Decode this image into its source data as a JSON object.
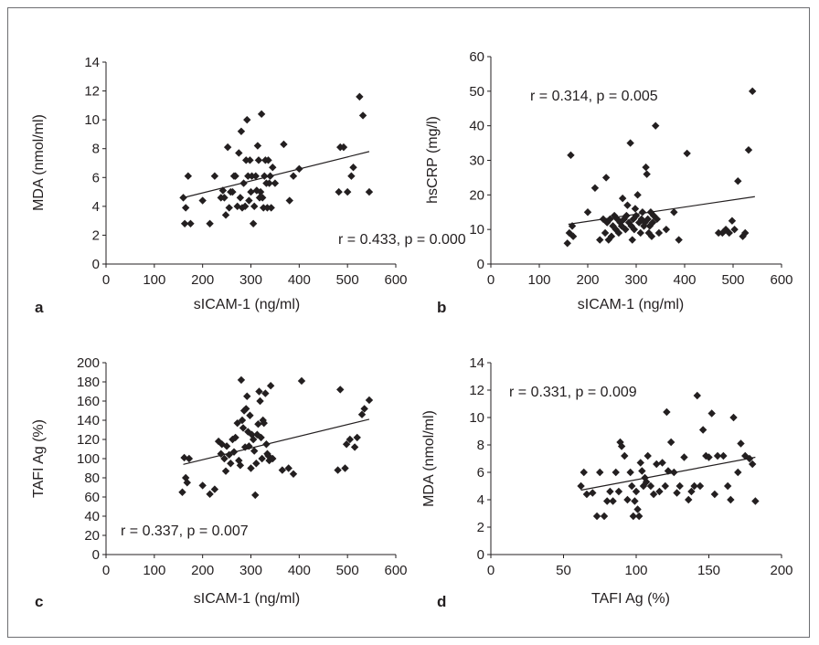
{
  "chart_data": [
    {
      "panel_letter": "a",
      "type": "scatter",
      "xlabel": "sICAM-1 (ng/ml)",
      "ylabel": "MDA (nmol/ml)",
      "xlim": [
        0,
        600
      ],
      "ylim": [
        0,
        14
      ],
      "xticks": [
        0,
        100,
        200,
        300,
        400,
        500,
        600
      ],
      "yticks": [
        0,
        2,
        4,
        6,
        8,
        10,
        12,
        14
      ],
      "annotation": "r = 0.433, p = 0.000",
      "trendline": [
        [
          160,
          4.6
        ],
        [
          545,
          7.8
        ]
      ],
      "points": [
        [
          160,
          4.6
        ],
        [
          163,
          2.8
        ],
        [
          165,
          3.9
        ],
        [
          170,
          6.1
        ],
        [
          175,
          2.8
        ],
        [
          200,
          4.4
        ],
        [
          215,
          2.8
        ],
        [
          225,
          6.1
        ],
        [
          238,
          4.6
        ],
        [
          242,
          5.1
        ],
        [
          245,
          4.6
        ],
        [
          248,
          3.4
        ],
        [
          252,
          8.1
        ],
        [
          255,
          3.9
        ],
        [
          258,
          5.0
        ],
        [
          262,
          5.0
        ],
        [
          265,
          6.1
        ],
        [
          268,
          6.1
        ],
        [
          272,
          4.0
        ],
        [
          275,
          7.7
        ],
        [
          278,
          4.6
        ],
        [
          280,
          9.2
        ],
        [
          282,
          3.9
        ],
        [
          285,
          5.6
        ],
        [
          288,
          4.0
        ],
        [
          290,
          7.2
        ],
        [
          292,
          10.0
        ],
        [
          294,
          6.1
        ],
        [
          296,
          4.4
        ],
        [
          298,
          7.2
        ],
        [
          300,
          5.0
        ],
        [
          302,
          6.1
        ],
        [
          305,
          2.8
        ],
        [
          307,
          4.0
        ],
        [
          310,
          6.1
        ],
        [
          312,
          5.1
        ],
        [
          314,
          8.2
        ],
        [
          316,
          7.2
        ],
        [
          318,
          4.6
        ],
        [
          320,
          5.0
        ],
        [
          322,
          10.4
        ],
        [
          324,
          4.6
        ],
        [
          326,
          3.9
        ],
        [
          328,
          6.1
        ],
        [
          330,
          7.2
        ],
        [
          332,
          5.6
        ],
        [
          334,
          3.9
        ],
        [
          336,
          7.2
        ],
        [
          338,
          5.6
        ],
        [
          340,
          6.1
        ],
        [
          342,
          3.9
        ],
        [
          345,
          6.7
        ],
        [
          350,
          5.6
        ],
        [
          368,
          8.3
        ],
        [
          380,
          4.4
        ],
        [
          388,
          6.1
        ],
        [
          400,
          6.6
        ],
        [
          482,
          5.0
        ],
        [
          485,
          8.1
        ],
        [
          492,
          8.1
        ],
        [
          500,
          5.0
        ],
        [
          508,
          6.1
        ],
        [
          512,
          6.7
        ],
        [
          525,
          11.6
        ],
        [
          532,
          10.3
        ],
        [
          545,
          5.0
        ]
      ]
    },
    {
      "panel_letter": "b",
      "type": "scatter",
      "xlabel": "sICAM-1 (ng/ml)",
      "ylabel": "hsCRP (mg/l)",
      "xlim": [
        0,
        600
      ],
      "ylim": [
        0,
        60
      ],
      "xticks": [
        0,
        100,
        200,
        300,
        400,
        500,
        600
      ],
      "yticks": [
        0,
        10,
        20,
        30,
        40,
        50,
        60
      ],
      "annotation": "r = 0.314, p = 0.005",
      "trendline": [
        [
          160,
          11.5
        ],
        [
          545,
          19.5
        ]
      ],
      "points": [
        [
          158,
          6
        ],
        [
          162,
          9
        ],
        [
          165,
          31.5
        ],
        [
          168,
          11
        ],
        [
          170,
          8
        ],
        [
          200,
          15
        ],
        [
          215,
          22
        ],
        [
          225,
          7
        ],
        [
          232,
          13
        ],
        [
          236,
          9
        ],
        [
          238,
          25
        ],
        [
          240,
          12
        ],
        [
          243,
          7
        ],
        [
          246,
          13
        ],
        [
          249,
          8
        ],
        [
          252,
          11
        ],
        [
          255,
          14
        ],
        [
          258,
          10
        ],
        [
          261,
          13
        ],
        [
          264,
          9
        ],
        [
          267,
          12
        ],
        [
          270,
          11
        ],
        [
          272,
          19
        ],
        [
          275,
          13
        ],
        [
          278,
          10
        ],
        [
          280,
          14
        ],
        [
          282,
          17
        ],
        [
          285,
          12
        ],
        [
          288,
          35
        ],
        [
          290,
          11
        ],
        [
          292,
          7
        ],
        [
          294,
          13
        ],
        [
          296,
          10
        ],
        [
          298,
          16
        ],
        [
          300,
          14
        ],
        [
          303,
          20
        ],
        [
          306,
          12
        ],
        [
          309,
          9
        ],
        [
          311,
          13
        ],
        [
          313,
          15
        ],
        [
          316,
          11
        ],
        [
          318,
          12
        ],
        [
          320,
          28
        ],
        [
          322,
          26
        ],
        [
          324,
          13
        ],
        [
          326,
          9
        ],
        [
          328,
          11
        ],
        [
          330,
          15
        ],
        [
          332,
          8
        ],
        [
          334,
          12
        ],
        [
          336,
          14
        ],
        [
          340,
          40
        ],
        [
          343,
          13
        ],
        [
          347,
          9
        ],
        [
          362,
          10
        ],
        [
          378,
          15
        ],
        [
          388,
          7
        ],
        [
          405,
          32
        ],
        [
          470,
          9
        ],
        [
          478,
          9
        ],
        [
          485,
          10
        ],
        [
          492,
          9
        ],
        [
          498,
          12.5
        ],
        [
          503,
          10
        ],
        [
          510,
          24
        ],
        [
          520,
          8
        ],
        [
          525,
          9
        ],
        [
          532,
          33
        ],
        [
          540,
          50
        ]
      ]
    },
    {
      "panel_letter": "c",
      "type": "scatter",
      "xlabel": "sICAM-1 (ng/ml)",
      "ylabel": "TAFI Ag (%)",
      "xlim": [
        0,
        600
      ],
      "ylim": [
        0,
        200
      ],
      "xticks": [
        0,
        100,
        200,
        300,
        400,
        500,
        600
      ],
      "yticks": [
        0,
        20,
        40,
        60,
        80,
        100,
        120,
        140,
        160,
        180,
        200
      ],
      "annotation": "r = 0.337, p = 0.007",
      "trendline": [
        [
          160,
          94
        ],
        [
          545,
          141
        ]
      ],
      "points": [
        [
          158,
          65
        ],
        [
          162,
          101
        ],
        [
          165,
          80
        ],
        [
          168,
          75
        ],
        [
          172,
          100
        ],
        [
          200,
          72
        ],
        [
          215,
          63
        ],
        [
          225,
          68
        ],
        [
          233,
          118
        ],
        [
          238,
          105
        ],
        [
          240,
          115
        ],
        [
          245,
          100
        ],
        [
          248,
          87
        ],
        [
          250,
          113
        ],
        [
          255,
          104
        ],
        [
          258,
          95
        ],
        [
          262,
          120
        ],
        [
          265,
          107
        ],
        [
          268,
          122
        ],
        [
          272,
          137
        ],
        [
          275,
          98
        ],
        [
          278,
          93
        ],
        [
          280,
          182
        ],
        [
          282,
          140
        ],
        [
          284,
          132
        ],
        [
          286,
          150
        ],
        [
          288,
          112
        ],
        [
          290,
          152
        ],
        [
          292,
          165
        ],
        [
          294,
          128
        ],
        [
          296,
          113
        ],
        [
          298,
          145
        ],
        [
          300,
          90
        ],
        [
          302,
          125
        ],
        [
          305,
          120
        ],
        [
          307,
          108
        ],
        [
          309,
          62
        ],
        [
          311,
          95
        ],
        [
          313,
          125
        ],
        [
          315,
          136
        ],
        [
          317,
          170
        ],
        [
          319,
          160
        ],
        [
          321,
          122
        ],
        [
          323,
          100
        ],
        [
          325,
          140
        ],
        [
          327,
          137
        ],
        [
          330,
          168
        ],
        [
          332,
          115
        ],
        [
          334,
          105
        ],
        [
          336,
          103
        ],
        [
          338,
          98
        ],
        [
          341,
          176
        ],
        [
          345,
          100
        ],
        [
          365,
          88
        ],
        [
          378,
          90
        ],
        [
          388,
          84
        ],
        [
          405,
          181
        ],
        [
          480,
          88
        ],
        [
          485,
          172
        ],
        [
          495,
          90
        ],
        [
          498,
          115
        ],
        [
          505,
          120
        ],
        [
          515,
          112
        ],
        [
          520,
          122
        ],
        [
          530,
          146
        ],
        [
          535,
          152
        ],
        [
          545,
          161
        ]
      ]
    },
    {
      "panel_letter": "d",
      "type": "scatter",
      "xlabel": "TAFI Ag (%)",
      "ylabel": "MDA (nmol/ml)",
      "xlim": [
        0,
        200
      ],
      "ylim": [
        0,
        14
      ],
      "xticks": [
        0,
        50,
        100,
        150,
        200
      ],
      "yticks": [
        0,
        2,
        4,
        6,
        8,
        10,
        12,
        14
      ],
      "annotation": "r = 0.331, p = 0.009",
      "trendline": [
        [
          62,
          4.7
        ],
        [
          182,
          7.1
        ]
      ],
      "points": [
        [
          62,
          5.0
        ],
        [
          64,
          6.0
        ],
        [
          66,
          4.4
        ],
        [
          70,
          4.5
        ],
        [
          73,
          2.8
        ],
        [
          75,
          6.0
        ],
        [
          78,
          2.8
        ],
        [
          80,
          3.9
        ],
        [
          82,
          4.6
        ],
        [
          84,
          3.9
        ],
        [
          86,
          6.0
        ],
        [
          88,
          4.6
        ],
        [
          89,
          8.2
        ],
        [
          90,
          7.9
        ],
        [
          92,
          7.2
        ],
        [
          94,
          4.0
        ],
        [
          96,
          6.0
        ],
        [
          97,
          5.0
        ],
        [
          98,
          2.8
        ],
        [
          99,
          3.9
        ],
        [
          100,
          4.6
        ],
        [
          101,
          3.3
        ],
        [
          102,
          2.8
        ],
        [
          103,
          6.7
        ],
        [
          104,
          6.1
        ],
        [
          105,
          5.0
        ],
        [
          106,
          5.6
        ],
        [
          107,
          5.3
        ],
        [
          108,
          7.2
        ],
        [
          110,
          5.0
        ],
        [
          112,
          4.4
        ],
        [
          114,
          6.6
        ],
        [
          116,
          4.6
        ],
        [
          118,
          6.7
        ],
        [
          120,
          5.0
        ],
        [
          121,
          10.4
        ],
        [
          122,
          6.1
        ],
        [
          124,
          8.2
        ],
        [
          126,
          6.0
        ],
        [
          128,
          4.5
        ],
        [
          130,
          5.0
        ],
        [
          133,
          7.1
        ],
        [
          136,
          4.0
        ],
        [
          138,
          4.6
        ],
        [
          140,
          5.0
        ],
        [
          142,
          11.6
        ],
        [
          144,
          5.0
        ],
        [
          146,
          9.1
        ],
        [
          148,
          7.2
        ],
        [
          150,
          7.1
        ],
        [
          152,
          10.3
        ],
        [
          154,
          4.4
        ],
        [
          156,
          7.2
        ],
        [
          160,
          7.2
        ],
        [
          163,
          5.0
        ],
        [
          165,
          4.0
        ],
        [
          167,
          10.0
        ],
        [
          170,
          6.0
        ],
        [
          172,
          8.1
        ],
        [
          175,
          7.2
        ],
        [
          178,
          7.0
        ],
        [
          180,
          6.6
        ],
        [
          182,
          3.9
        ]
      ]
    }
  ]
}
